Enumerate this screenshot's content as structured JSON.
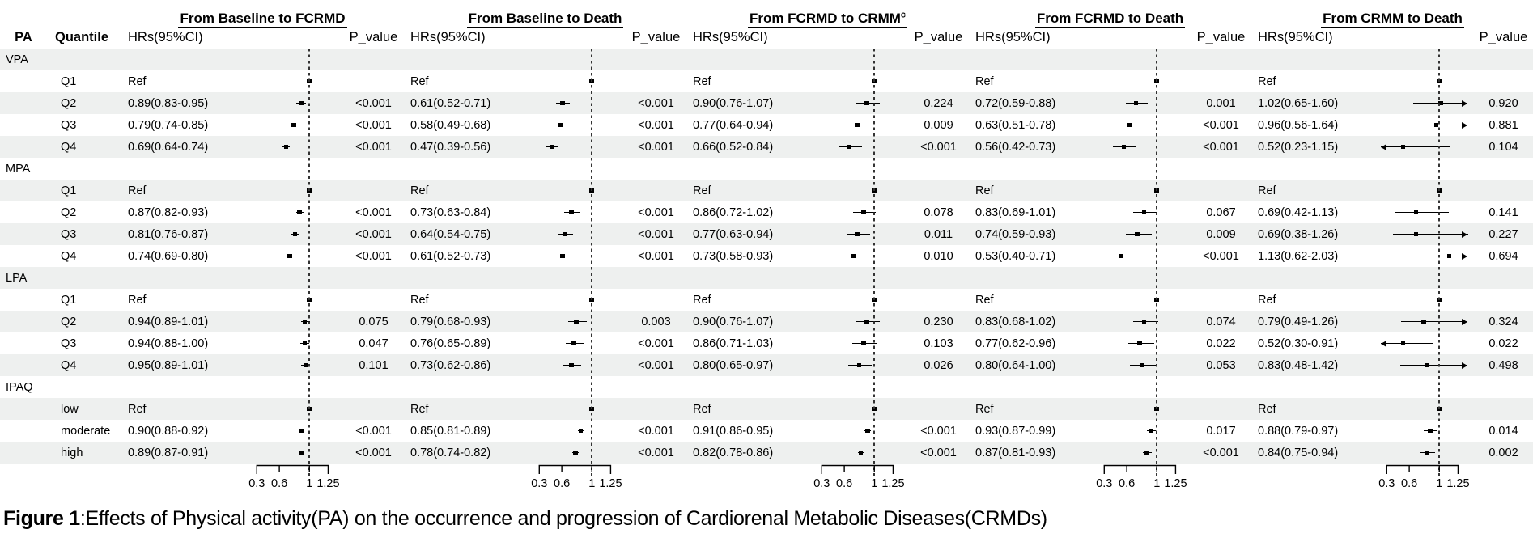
{
  "figure": {
    "caption_prefix": "Figure 1",
    "caption_text": ":Effects of Physical activity(PA) on the occurrence and progression of Cardiorenal Metabolic Diseases(CRMDs)"
  },
  "table": {
    "col_pa": "PA",
    "col_quantile": "Quantile",
    "col_hr": "HRs(95%CI)",
    "col_p": "P_value"
  },
  "colors": {
    "stripe": "#eef0ef",
    "marker": "#000000",
    "refline": "#333333",
    "text": "#000000"
  },
  "chart_data": {
    "type": "forest",
    "ref_label": "Ref",
    "ref_line": 1,
    "plot_domain": [
      0.2,
      1.45
    ],
    "axis_ticks": [
      0.3,
      0.6,
      1,
      1.25
    ],
    "axis_tick_labels": [
      "0.3",
      "0.6",
      "1",
      "1.25"
    ],
    "arrow_low_cutoff": 0.31,
    "arrow_high_cutoff": 1.25,
    "panels": [
      {
        "title": "From Baseline to FCRMD",
        "title_sup": ""
      },
      {
        "title": "From Baseline to Death",
        "title_sup": ""
      },
      {
        "title": "From FCRMD to CRMM",
        "title_sup": "c"
      },
      {
        "title": "From FCRMD to Death",
        "title_sup": ""
      },
      {
        "title": "From CRMM to Death",
        "title_sup": ""
      }
    ],
    "sections": [
      {
        "label": "VPA",
        "rows": [
          {
            "quantile": "Q1",
            "ref": true,
            "cells": [
              {
                "hr": "Ref"
              },
              {
                "hr": "Ref"
              },
              {
                "hr": "Ref"
              },
              {
                "hr": "Ref"
              },
              {
                "hr": "Ref"
              }
            ]
          },
          {
            "quantile": "Q2",
            "cells": [
              {
                "hr": "0.89(0.83-0.95)",
                "est": 0.89,
                "lo": 0.83,
                "hi": 0.95,
                "p": "<0.001"
              },
              {
                "hr": "0.61(0.52-0.71)",
                "est": 0.61,
                "lo": 0.52,
                "hi": 0.71,
                "p": "<0.001"
              },
              {
                "hr": "0.90(0.76-1.07)",
                "est": 0.9,
                "lo": 0.76,
                "hi": 1.07,
                "p": "0.224"
              },
              {
                "hr": "0.72(0.59-0.88)",
                "est": 0.72,
                "lo": 0.59,
                "hi": 0.88,
                "p": "0.001"
              },
              {
                "hr": "1.02(0.65-1.60)",
                "est": 1.02,
                "lo": 0.65,
                "hi": 1.6,
                "p": "0.920"
              }
            ]
          },
          {
            "quantile": "Q3",
            "cells": [
              {
                "hr": "0.79(0.74-0.85)",
                "est": 0.79,
                "lo": 0.74,
                "hi": 0.85,
                "p": "<0.001"
              },
              {
                "hr": "0.58(0.49-0.68)",
                "est": 0.58,
                "lo": 0.49,
                "hi": 0.68,
                "p": "<0.001"
              },
              {
                "hr": "0.77(0.64-0.94)",
                "est": 0.77,
                "lo": 0.64,
                "hi": 0.94,
                "p": "0.009"
              },
              {
                "hr": "0.63(0.51-0.78)",
                "est": 0.63,
                "lo": 0.51,
                "hi": 0.78,
                "p": "<0.001"
              },
              {
                "hr": "0.96(0.56-1.64)",
                "est": 0.96,
                "lo": 0.56,
                "hi": 1.64,
                "p": "0.881"
              }
            ]
          },
          {
            "quantile": "Q4",
            "cells": [
              {
                "hr": "0.69(0.64-0.74)",
                "est": 0.69,
                "lo": 0.64,
                "hi": 0.74,
                "p": "<0.001"
              },
              {
                "hr": "0.47(0.39-0.56)",
                "est": 0.47,
                "lo": 0.39,
                "hi": 0.56,
                "p": "<0.001"
              },
              {
                "hr": "0.66(0.52-0.84)",
                "est": 0.66,
                "lo": 0.52,
                "hi": 0.84,
                "p": "<0.001"
              },
              {
                "hr": "0.56(0.42-0.73)",
                "est": 0.56,
                "lo": 0.42,
                "hi": 0.73,
                "p": "<0.001"
              },
              {
                "hr": "0.52(0.23-1.15)",
                "est": 0.52,
                "lo": 0.23,
                "hi": 1.15,
                "p": "0.104"
              }
            ]
          }
        ]
      },
      {
        "label": "MPA",
        "rows": [
          {
            "quantile": "Q1",
            "ref": true,
            "cells": [
              {
                "hr": "Ref"
              },
              {
                "hr": "Ref"
              },
              {
                "hr": "Ref"
              },
              {
                "hr": "Ref"
              },
              {
                "hr": "Ref"
              }
            ]
          },
          {
            "quantile": "Q2",
            "cells": [
              {
                "hr": "0.87(0.82-0.93)",
                "est": 0.87,
                "lo": 0.82,
                "hi": 0.93,
                "p": "<0.001"
              },
              {
                "hr": "0.73(0.63-0.84)",
                "est": 0.73,
                "lo": 0.63,
                "hi": 0.84,
                "p": "<0.001"
              },
              {
                "hr": "0.86(0.72-1.02)",
                "est": 0.86,
                "lo": 0.72,
                "hi": 1.02,
                "p": "0.078"
              },
              {
                "hr": "0.83(0.69-1.01)",
                "est": 0.83,
                "lo": 0.69,
                "hi": 1.01,
                "p": "0.067"
              },
              {
                "hr": "0.69(0.42-1.13)",
                "est": 0.69,
                "lo": 0.42,
                "hi": 1.13,
                "p": "0.141"
              }
            ]
          },
          {
            "quantile": "Q3",
            "cells": [
              {
                "hr": "0.81(0.76-0.87)",
                "est": 0.81,
                "lo": 0.76,
                "hi": 0.87,
                "p": "<0.001"
              },
              {
                "hr": "0.64(0.54-0.75)",
                "est": 0.64,
                "lo": 0.54,
                "hi": 0.75,
                "p": "<0.001"
              },
              {
                "hr": "0.77(0.63-0.94)",
                "est": 0.77,
                "lo": 0.63,
                "hi": 0.94,
                "p": "0.011"
              },
              {
                "hr": "0.74(0.59-0.93)",
                "est": 0.74,
                "lo": 0.59,
                "hi": 0.93,
                "p": "0.009"
              },
              {
                "hr": "0.69(0.38-1.26)",
                "est": 0.69,
                "lo": 0.38,
                "hi": 1.26,
                "p": "0.227"
              }
            ]
          },
          {
            "quantile": "Q4",
            "cells": [
              {
                "hr": "0.74(0.69-0.80)",
                "est": 0.74,
                "lo": 0.69,
                "hi": 0.8,
                "p": "<0.001"
              },
              {
                "hr": "0.61(0.52-0.73)",
                "est": 0.61,
                "lo": 0.52,
                "hi": 0.73,
                "p": "<0.001"
              },
              {
                "hr": "0.73(0.58-0.93)",
                "est": 0.73,
                "lo": 0.58,
                "hi": 0.93,
                "p": "0.010"
              },
              {
                "hr": "0.53(0.40-0.71)",
                "est": 0.53,
                "lo": 0.4,
                "hi": 0.71,
                "p": "<0.001"
              },
              {
                "hr": "1.13(0.62-2.03)",
                "est": 1.13,
                "lo": 0.62,
                "hi": 2.03,
                "p": "0.694"
              }
            ]
          }
        ]
      },
      {
        "label": "LPA",
        "rows": [
          {
            "quantile": "Q1",
            "ref": true,
            "cells": [
              {
                "hr": "Ref"
              },
              {
                "hr": "Ref"
              },
              {
                "hr": "Ref"
              },
              {
                "hr": "Ref"
              },
              {
                "hr": "Ref"
              }
            ]
          },
          {
            "quantile": "Q2",
            "cells": [
              {
                "hr": "0.94(0.89-1.01)",
                "est": 0.94,
                "lo": 0.89,
                "hi": 1.01,
                "p": "0.075"
              },
              {
                "hr": "0.79(0.68-0.93)",
                "est": 0.79,
                "lo": 0.68,
                "hi": 0.93,
                "p": "0.003"
              },
              {
                "hr": "0.90(0.76-1.07)",
                "est": 0.9,
                "lo": 0.76,
                "hi": 1.07,
                "p": "0.230"
              },
              {
                "hr": "0.83(0.68-1.02)",
                "est": 0.83,
                "lo": 0.68,
                "hi": 1.02,
                "p": "0.074"
              },
              {
                "hr": "0.79(0.49-1.26)",
                "est": 0.79,
                "lo": 0.49,
                "hi": 1.26,
                "p": "0.324"
              }
            ]
          },
          {
            "quantile": "Q3",
            "cells": [
              {
                "hr": "0.94(0.88-1.00)",
                "est": 0.94,
                "lo": 0.88,
                "hi": 1.0,
                "p": "0.047"
              },
              {
                "hr": "0.76(0.65-0.89)",
                "est": 0.76,
                "lo": 0.65,
                "hi": 0.89,
                "p": "<0.001"
              },
              {
                "hr": "0.86(0.71-1.03)",
                "est": 0.86,
                "lo": 0.71,
                "hi": 1.03,
                "p": "0.103"
              },
              {
                "hr": "0.77(0.62-0.96)",
                "est": 0.77,
                "lo": 0.62,
                "hi": 0.96,
                "p": "0.022"
              },
              {
                "hr": "0.52(0.30-0.91)",
                "est": 0.52,
                "lo": 0.3,
                "hi": 0.91,
                "p": "0.022"
              }
            ]
          },
          {
            "quantile": "Q4",
            "cells": [
              {
                "hr": "0.95(0.89-1.01)",
                "est": 0.95,
                "lo": 0.89,
                "hi": 1.01,
                "p": "0.101"
              },
              {
                "hr": "0.73(0.62-0.86)",
                "est": 0.73,
                "lo": 0.62,
                "hi": 0.86,
                "p": "<0.001"
              },
              {
                "hr": "0.80(0.65-0.97)",
                "est": 0.8,
                "lo": 0.65,
                "hi": 0.97,
                "p": "0.026"
              },
              {
                "hr": "0.80(0.64-1.00)",
                "est": 0.8,
                "lo": 0.64,
                "hi": 1.0,
                "p": "0.053"
              },
              {
                "hr": "0.83(0.48-1.42)",
                "est": 0.83,
                "lo": 0.48,
                "hi": 1.42,
                "p": "0.498"
              }
            ]
          }
        ]
      },
      {
        "label": "IPAQ",
        "rows": [
          {
            "quantile": "low",
            "ref": true,
            "cells": [
              {
                "hr": "Ref"
              },
              {
                "hr": "Ref"
              },
              {
                "hr": "Ref"
              },
              {
                "hr": "Ref"
              },
              {
                "hr": "Ref"
              }
            ]
          },
          {
            "quantile": "moderate",
            "cells": [
              {
                "hr": "0.90(0.88-0.92)",
                "est": 0.9,
                "lo": 0.88,
                "hi": 0.92,
                "p": "<0.001"
              },
              {
                "hr": "0.85(0.81-0.89)",
                "est": 0.85,
                "lo": 0.81,
                "hi": 0.89,
                "p": "<0.001"
              },
              {
                "hr": "0.91(0.86-0.95)",
                "est": 0.91,
                "lo": 0.86,
                "hi": 0.95,
                "p": "<0.001"
              },
              {
                "hr": "0.93(0.87-0.99)",
                "est": 0.93,
                "lo": 0.87,
                "hi": 0.99,
                "p": "0.017"
              },
              {
                "hr": "0.88(0.79-0.97)",
                "est": 0.88,
                "lo": 0.79,
                "hi": 0.97,
                "p": "0.014"
              }
            ]
          },
          {
            "quantile": "high",
            "cells": [
              {
                "hr": "0.89(0.87-0.91)",
                "est": 0.89,
                "lo": 0.87,
                "hi": 0.91,
                "p": "<0.001"
              },
              {
                "hr": "0.78(0.74-0.82)",
                "est": 0.78,
                "lo": 0.74,
                "hi": 0.82,
                "p": "<0.001"
              },
              {
                "hr": "0.82(0.78-0.86)",
                "est": 0.82,
                "lo": 0.78,
                "hi": 0.86,
                "p": "<0.001"
              },
              {
                "hr": "0.87(0.81-0.93)",
                "est": 0.87,
                "lo": 0.81,
                "hi": 0.93,
                "p": "<0.001"
              },
              {
                "hr": "0.84(0.75-0.94)",
                "est": 0.84,
                "lo": 0.75,
                "hi": 0.94,
                "p": "0.002"
              }
            ]
          }
        ]
      }
    ]
  }
}
